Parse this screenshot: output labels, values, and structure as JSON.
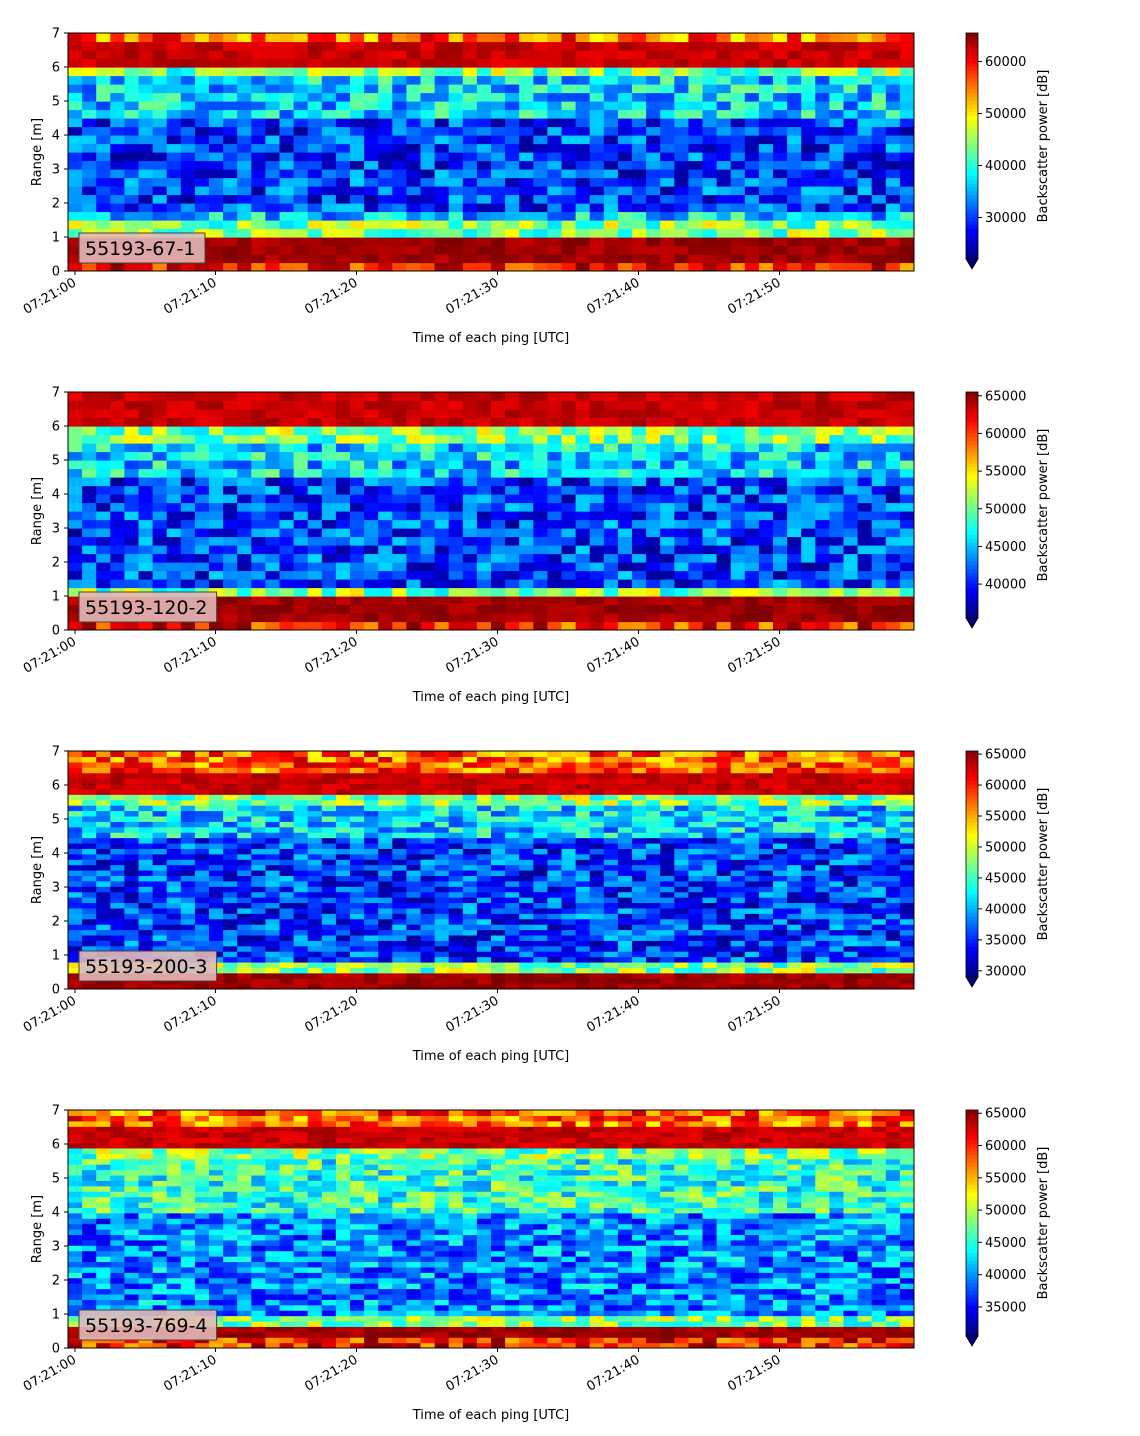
{
  "chart_data": [
    {
      "type": "heatmap",
      "panel_label": "55193-67-1",
      "xlabel": "Time of each ping [UTC]",
      "ylabel": "Range [m]",
      "ylim": [
        0,
        7
      ],
      "yticks": [
        "0",
        "1",
        "2",
        "3",
        "4",
        "5",
        "6",
        "7"
      ],
      "xticks": [
        "07:21:00",
        "07:21:10",
        "07:21:20",
        "07:21:30",
        "07:21:40",
        "07:21:50"
      ],
      "colorbar": {
        "label": "Backscatter power [dB]",
        "ticks": [
          "30000",
          "40000",
          "50000",
          "60000"
        ],
        "vmin": 22000,
        "vmax": 65500
      },
      "colormap": "jet",
      "bands": {
        "bottom_hot": [
          0.2,
          1.1
        ],
        "top_hot": [
          6.0,
          6.8
        ],
        "low_cool": [
          1.7,
          4.5
        ]
      }
    },
    {
      "type": "heatmap",
      "panel_label": "55193-120-2",
      "xlabel": "Time of each ping [UTC]",
      "ylabel": "Range [m]",
      "ylim": [
        0,
        7
      ],
      "yticks": [
        "0",
        "1",
        "2",
        "3",
        "4",
        "5",
        "6",
        "7"
      ],
      "xticks": [
        "07:21:00",
        "07:21:10",
        "07:21:20",
        "07:21:30",
        "07:21:40",
        "07:21:50"
      ],
      "colorbar": {
        "label": "Backscatter power [dB]",
        "ticks": [
          "40000",
          "45000",
          "50000",
          "55000",
          "60000",
          "65000"
        ],
        "vmin": 35500,
        "vmax": 65500
      },
      "colormap": "jet",
      "bands": {
        "bottom_hot": [
          0.2,
          0.9
        ],
        "top_hot": [
          5.9,
          7.0
        ],
        "low_cool": [
          1.3,
          4.5
        ]
      }
    },
    {
      "type": "heatmap",
      "panel_label": "55193-200-3",
      "xlabel": "Time of each ping [UTC]",
      "ylabel": "Range [m]",
      "ylim": [
        0,
        7
      ],
      "yticks": [
        "0",
        "1",
        "2",
        "3",
        "4",
        "5",
        "6",
        "7"
      ],
      "xticks": [
        "07:21:00",
        "07:21:10",
        "07:21:20",
        "07:21:30",
        "07:21:40",
        "07:21:50"
      ],
      "colorbar": {
        "label": "Backscatter power [dB]",
        "ticks": [
          "30000",
          "35000",
          "40000",
          "45000",
          "50000",
          "55000",
          "60000",
          "65000"
        ],
        "vmin": 29000,
        "vmax": 65500
      },
      "colormap": "jet",
      "bands": {
        "bottom_hot": [
          0.0,
          0.4
        ],
        "top_hot": [
          5.7,
          6.3
        ],
        "low_cool": [
          0.5,
          4.5
        ]
      }
    },
    {
      "type": "heatmap",
      "panel_label": "55193-769-4",
      "xlabel": "Time of each ping [UTC]",
      "ylabel": "Range [m]",
      "ylim": [
        0,
        7
      ],
      "yticks": [
        "0",
        "1",
        "2",
        "3",
        "4",
        "5",
        "6",
        "7"
      ],
      "xticks": [
        "07:21:00",
        "07:21:10",
        "07:21:20",
        "07:21:30",
        "07:21:40",
        "07:21:50"
      ],
      "colorbar": {
        "label": "Backscatter power [dB]",
        "ticks": [
          "35000",
          "40000",
          "45000",
          "50000",
          "55000",
          "60000",
          "65000"
        ],
        "vmin": 30500,
        "vmax": 65500
      },
      "colormap": "jet",
      "bands": {
        "bottom_hot": [
          0.25,
          0.65
        ],
        "top_hot": [
          5.9,
          6.5
        ],
        "low_cool": [
          0.8,
          4.0
        ]
      }
    }
  ],
  "colors": {
    "label_box_fill": "#e3b8b8",
    "label_box_edge": "#444444"
  }
}
